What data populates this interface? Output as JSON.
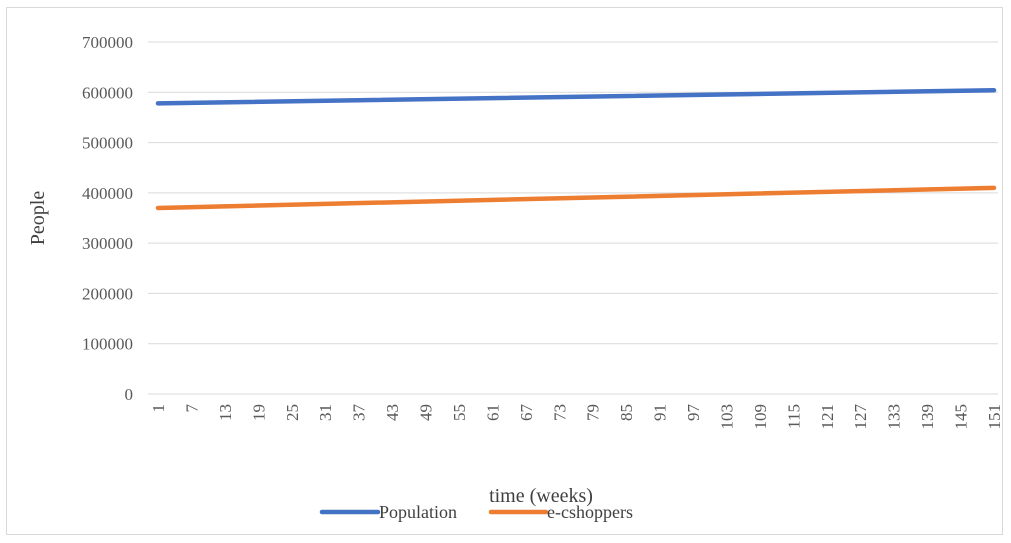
{
  "chart_data": {
    "type": "line",
    "xlabel": "time (weeks)",
    "ylabel": "People",
    "ylim": [
      0,
      700000
    ],
    "yticks": [
      "0",
      "100000",
      "200000",
      "300000",
      "400000",
      "500000",
      "600000",
      "700000"
    ],
    "x_tick_labels": [
      "1",
      "7",
      "13",
      "19",
      "25",
      "31",
      "37",
      "43",
      "49",
      "55",
      "61",
      "67",
      "73",
      "79",
      "85",
      "91",
      "97",
      "103",
      "109",
      "115",
      "121",
      "127",
      "133",
      "139",
      "145",
      "151"
    ],
    "x_range": [
      1,
      151
    ],
    "grid": true,
    "legend_position": "bottom",
    "series": [
      {
        "name": "Population",
        "color": "#4472c4",
        "x": [
          1,
          151
        ],
        "values": [
          578000,
          604000
        ]
      },
      {
        "name": "e-cshoppers",
        "color": "#ed7d31",
        "x": [
          1,
          151
        ],
        "values": [
          370000,
          410000
        ]
      }
    ]
  }
}
